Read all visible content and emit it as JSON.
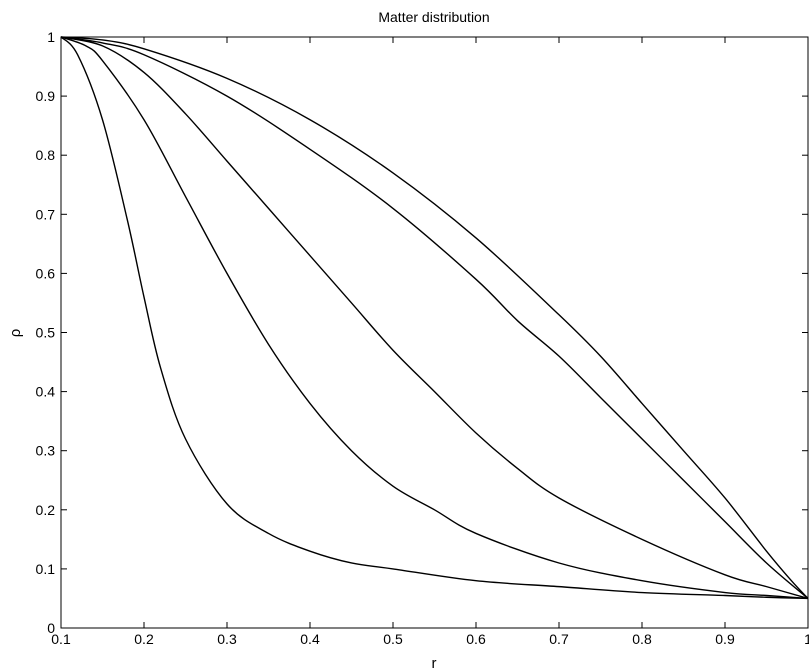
{
  "chart_data": {
    "type": "line",
    "title": "Matter distribution",
    "xlabel": "r",
    "ylabel": "ρ",
    "xlim": [
      0.1,
      1.0
    ],
    "ylim": [
      0,
      1
    ],
    "x_ticks": [
      "0.1",
      "0.2",
      "0.3",
      "0.4",
      "0.5",
      "0.6",
      "0.7",
      "0.8",
      "0.9",
      "1"
    ],
    "y_ticks": [
      "0",
      "0.1",
      "0.2",
      "0.3",
      "0.4",
      "0.5",
      "0.6",
      "0.7",
      "0.8",
      "0.9",
      "1"
    ],
    "grid": false,
    "line_color": "#000000",
    "series": [
      {
        "x": [
          0.1,
          0.12,
          0.15,
          0.18,
          0.2,
          0.22,
          0.25,
          0.3,
          0.35,
          0.4,
          0.45,
          0.5,
          0.6,
          0.7,
          0.8,
          0.9,
          0.95,
          1.0
        ],
        "values": [
          1.0,
          0.97,
          0.86,
          0.69,
          0.56,
          0.44,
          0.32,
          0.21,
          0.16,
          0.13,
          0.11,
          0.1,
          0.08,
          0.07,
          0.06,
          0.055,
          0.052,
          0.05
        ]
      },
      {
        "x": [
          0.1,
          0.13,
          0.15,
          0.2,
          0.25,
          0.3,
          0.35,
          0.4,
          0.45,
          0.5,
          0.55,
          0.6,
          0.7,
          0.8,
          0.9,
          0.95,
          1.0
        ],
        "values": [
          1.0,
          0.985,
          0.96,
          0.86,
          0.73,
          0.6,
          0.48,
          0.38,
          0.3,
          0.24,
          0.2,
          0.16,
          0.11,
          0.08,
          0.06,
          0.055,
          0.05
        ]
      },
      {
        "x": [
          0.1,
          0.15,
          0.2,
          0.25,
          0.3,
          0.35,
          0.4,
          0.45,
          0.5,
          0.55,
          0.6,
          0.65,
          0.7,
          0.8,
          0.9,
          0.95,
          1.0
        ],
        "values": [
          1.0,
          0.985,
          0.94,
          0.87,
          0.79,
          0.71,
          0.63,
          0.55,
          0.47,
          0.4,
          0.33,
          0.27,
          0.22,
          0.15,
          0.09,
          0.07,
          0.05
        ]
      },
      {
        "x": [
          0.1,
          0.15,
          0.2,
          0.3,
          0.4,
          0.5,
          0.6,
          0.65,
          0.7,
          0.75,
          0.8,
          0.85,
          0.9,
          0.95,
          1.0
        ],
        "values": [
          1.0,
          0.99,
          0.97,
          0.9,
          0.81,
          0.71,
          0.59,
          0.52,
          0.46,
          0.39,
          0.32,
          0.25,
          0.18,
          0.11,
          0.05
        ]
      },
      {
        "x": [
          0.1,
          0.15,
          0.2,
          0.3,
          0.4,
          0.5,
          0.6,
          0.7,
          0.75,
          0.8,
          0.85,
          0.9,
          0.95,
          0.98,
          1.0
        ],
        "values": [
          1.0,
          0.995,
          0.98,
          0.93,
          0.86,
          0.77,
          0.66,
          0.53,
          0.46,
          0.38,
          0.3,
          0.22,
          0.13,
          0.08,
          0.05
        ]
      }
    ]
  }
}
